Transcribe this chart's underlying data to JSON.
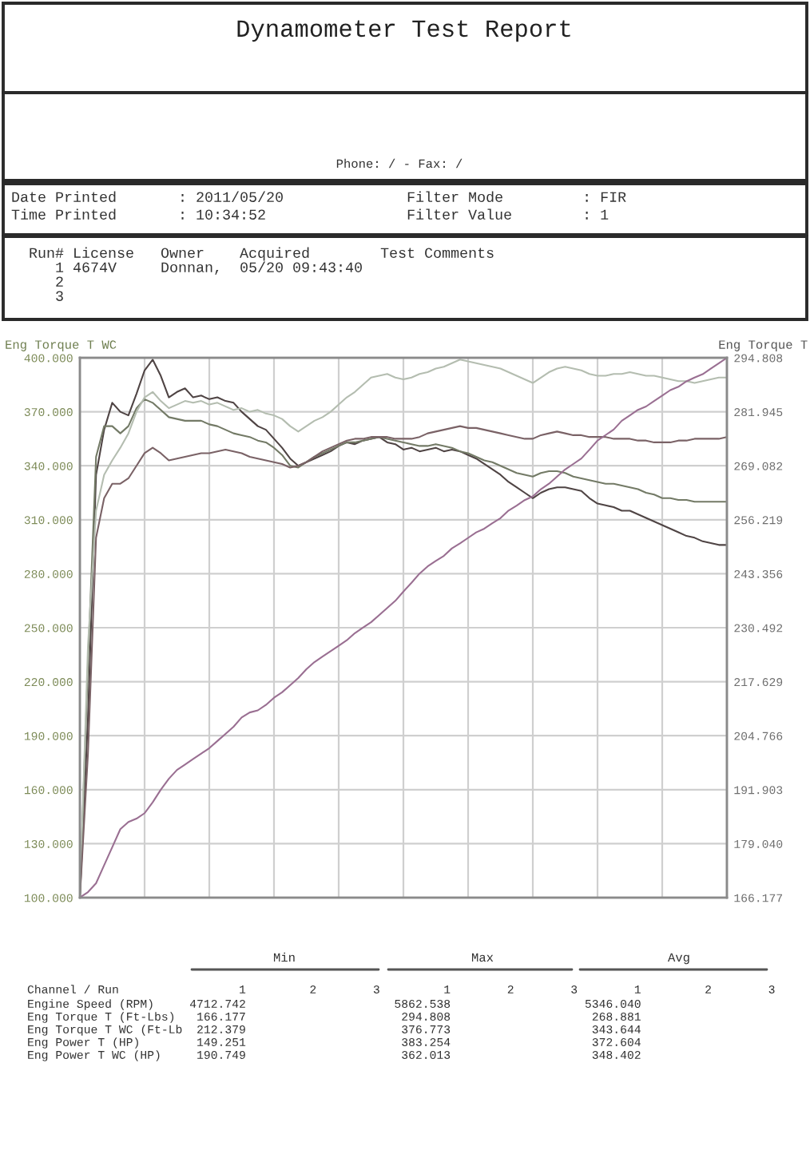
{
  "chart_data": {
    "type": "line",
    "title": "Dynamometer Test Report",
    "ylabel": "Eng Torque T WC",
    "y2label": "Eng Torque T",
    "categories": [
      null,
      null,
      null,
      null,
      null,
      null,
      null,
      null,
      null,
      null,
      null,
      null,
      null,
      null,
      null,
      null,
      null,
      null,
      null,
      null,
      null,
      null,
      null,
      null,
      null,
      null,
      null,
      null,
      null,
      null,
      null,
      null,
      null,
      null,
      null,
      null,
      null,
      null,
      null,
      null,
      null,
      null,
      null,
      null,
      null,
      null,
      null,
      null,
      null,
      null,
      null,
      null,
      null,
      null,
      null,
      null,
      null,
      null,
      null,
      null,
      null,
      null,
      null,
      null,
      null,
      null,
      null,
      null,
      null,
      null,
      null,
      null,
      null,
      null,
      null,
      null,
      null,
      null,
      null,
      null,
      null
    ],
    "ylim": [
      100,
      400
    ],
    "yticks": [
      {
        "value": 100,
        "label": "100.000"
      },
      {
        "value": 130,
        "label": "130.000"
      },
      {
        "value": 160,
        "label": "160.000"
      },
      {
        "value": 190,
        "label": "190.000"
      },
      {
        "value": 220,
        "label": "220.000"
      },
      {
        "value": 250,
        "label": "250.000"
      },
      {
        "value": 280,
        "label": "280.000"
      },
      {
        "value": 310,
        "label": "310.000"
      },
      {
        "value": 340,
        "label": "340.000"
      },
      {
        "value": 370,
        "label": "370.000"
      },
      {
        "value": 400,
        "label": "400.000"
      }
    ],
    "y2lim": [
      166.177,
      294.808
    ],
    "y2ticks": [
      166.177,
      {
        "value": 179.04,
        "label": "179.040"
      },
      191.903,
      204.766,
      217.629,
      230.492,
      243.356,
      256.219,
      269.082,
      281.945,
      294.808
    ],
    "grid": true,
    "series": [
      {
        "axis": "y2",
        "color": "#9a6f92",
        "values": [
          166.2,
          167.5,
          169.6,
          173.9,
          178.2,
          182.5,
          184.2,
          185.0,
          186.3,
          188.9,
          191.9,
          194.5,
          196.6,
          197.9,
          199.2,
          200.5,
          201.8,
          203.5,
          205.2,
          206.9,
          209.1,
          210.3,
          210.8,
          212.1,
          213.8,
          215.1,
          216.8,
          218.5,
          220.6,
          222.3,
          223.6,
          224.9,
          226.2,
          227.5,
          229.2,
          230.5,
          231.8,
          233.5,
          235.2,
          236.9,
          239.1,
          241.2,
          243.4,
          245.1,
          246.4,
          247.6,
          249.4,
          250.6,
          251.9,
          253.2,
          254.1,
          255.4,
          256.6,
          258.4,
          259.6,
          260.9,
          261.8,
          263.5,
          264.8,
          266.5,
          268.2,
          269.5,
          270.8,
          272.9,
          275.1,
          276.4,
          277.7,
          279.8,
          281.1,
          282.4,
          283.2,
          284.5,
          285.8,
          287.1,
          287.9,
          289.2,
          290.1,
          290.9,
          292.2,
          293.5,
          294.8
        ]
      },
      {
        "color": "#4f4444",
        "values": [
          100,
          200,
          335,
          360,
          375,
          370,
          368,
          380,
          393,
          399,
          390,
          378,
          381,
          383,
          378,
          379,
          377,
          378,
          376,
          375,
          370,
          366,
          362,
          360,
          355,
          350,
          344,
          340,
          342,
          344,
          346,
          348,
          351,
          353,
          352,
          354,
          355,
          356,
          353,
          352,
          349,
          350,
          348,
          349,
          350,
          348,
          349,
          348,
          346,
          344,
          341,
          338,
          335,
          331,
          328,
          325,
          322,
          325,
          327,
          328,
          328,
          327,
          326,
          322,
          319,
          318,
          317,
          315,
          315,
          313,
          311,
          309,
          307,
          305,
          303,
          301,
          300,
          298,
          297,
          296,
          296
        ]
      },
      {
        "color": "#737a66",
        "values": [
          100,
          230,
          345,
          362,
          362,
          358,
          362,
          372,
          377,
          375,
          371,
          367,
          366,
          365,
          365,
          365,
          363,
          362,
          360,
          358,
          357,
          356,
          354,
          353,
          350,
          346,
          340,
          339,
          342,
          345,
          347,
          349,
          351,
          353,
          353,
          354,
          355,
          356,
          355,
          354,
          353,
          352,
          351,
          351,
          352,
          351,
          350,
          348,
          347,
          345,
          343,
          342,
          340,
          338,
          336,
          335,
          334,
          336,
          337,
          337,
          336,
          334,
          333,
          332,
          331,
          330,
          330,
          329,
          328,
          327,
          325,
          324,
          322,
          322,
          321,
          321,
          320,
          320,
          320,
          320,
          320
        ]
      },
      {
        "color": "#b4bdb0",
        "values": [
          100,
          240,
          315,
          335,
          343,
          350,
          358,
          370,
          378,
          381,
          376,
          372,
          374,
          376,
          375,
          376,
          374,
          375,
          373,
          371,
          372,
          370,
          371,
          369,
          368,
          366,
          362,
          359,
          362,
          365,
          367,
          370,
          374,
          378,
          381,
          385,
          389,
          390,
          391,
          389,
          388,
          389,
          391,
          392,
          394,
          395,
          397,
          399,
          398,
          397,
          396,
          395,
          394,
          392,
          390,
          388,
          386,
          389,
          392,
          394,
          395,
          394,
          393,
          391,
          390,
          390,
          391,
          391,
          392,
          391,
          390,
          390,
          389,
          388,
          387,
          387,
          386,
          387,
          388,
          389,
          389
        ]
      },
      {
        "color": "#7a6266",
        "values": [
          100,
          180,
          300,
          322,
          330,
          330,
          333,
          340,
          347,
          350,
          347,
          343,
          344,
          345,
          346,
          347,
          347,
          348,
          349,
          348,
          347,
          345,
          344,
          343,
          342,
          341,
          339,
          340,
          342,
          345,
          348,
          350,
          352,
          354,
          355,
          355,
          356,
          356,
          356,
          355,
          355,
          355,
          356,
          358,
          359,
          360,
          361,
          362,
          361,
          361,
          360,
          359,
          358,
          357,
          356,
          355,
          355,
          357,
          358,
          359,
          358,
          357,
          357,
          356,
          356,
          356,
          355,
          355,
          355,
          354,
          354,
          353,
          353,
          353,
          354,
          354,
          355,
          355,
          355,
          355,
          356
        ]
      }
    ],
    "annotations": [
      "Phone: / - Fax: /",
      "Date Printed       : 2011/05/20              Filter Mode         : FIR",
      "Time Printed       : 10:34:52                Filter Value        : 1",
      "Run# License   Owner    Acquired        Test Comments",
      "1 4674V     Donnan,  05/20 09:43:40",
      "2",
      "3",
      "Min",
      "Max",
      "Avg",
      "Channel / Run                 1         2        3         1        2        3        1         2        3",
      "Engine Speed (RPM)     4712.742                     5862.538                   5346.040",
      "Eng Torque T (Ft-Lbs)   166.177                      294.808                    268.881",
      "Eng Torque T WC (Ft-Lb  212.379                      376.773                    343.644",
      "Eng Power T (HP)        149.251                      383.254                    372.604",
      "Eng Power T WC (HP)     190.749                      362.013                    348.402"
    ]
  }
}
